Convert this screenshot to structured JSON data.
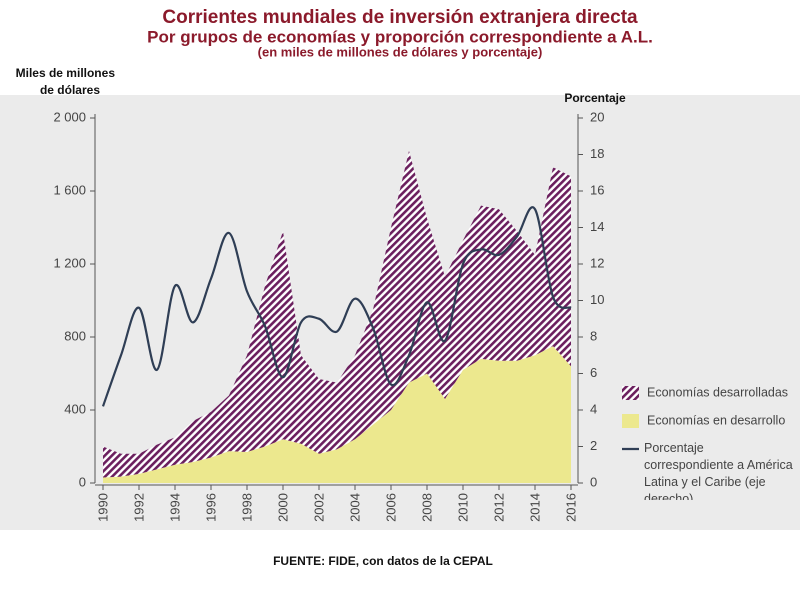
{
  "chart_data": {
    "type": "area",
    "title": "Corrientes mundiales de inversión extranjera directa",
    "subtitle": "Por grupos de economías y proporción correspondiente a A.L.",
    "note": "(en miles de millones de dólares y porcentaje)",
    "ylabel": [
      "Miles de millones",
      "de dólares"
    ],
    "y2label": "Porcentaje",
    "source": "FUENTE: FIDE, con datos de la CEPAL",
    "x": [
      1990,
      1991,
      1992,
      1993,
      1994,
      1995,
      1996,
      1997,
      1998,
      1999,
      2000,
      2001,
      2002,
      2003,
      2004,
      2005,
      2006,
      2007,
      2008,
      2009,
      2010,
      2011,
      2012,
      2013,
      2014,
      2015,
      2016
    ],
    "xlim": [
      1990,
      2016
    ],
    "xticks": [
      1990,
      1992,
      1994,
      1996,
      1998,
      2000,
      2002,
      2004,
      2006,
      2008,
      2010,
      2012,
      2014,
      2016
    ],
    "ylim": [
      0,
      2000
    ],
    "yticks": [
      0,
      400,
      800,
      {
        "value": 1200,
        "label": "1 200"
      },
      {
        "value": 1600,
        "label": "1 600"
      },
      {
        "value": 2000,
        "label": "2 000"
      }
    ],
    "y2lim": [
      0,
      20
    ],
    "y2ticks": [
      0,
      2,
      4,
      6,
      8,
      10,
      12,
      14,
      16,
      18,
      20
    ],
    "stacked": true,
    "series": [
      {
        "name": "Economías en desarrollo",
        "type": "area",
        "color": "#ece88e",
        "values": [
          30,
          35,
          50,
          75,
          100,
          115,
          140,
          175,
          170,
          200,
          240,
          215,
          160,
          185,
          240,
          320,
          400,
          550,
          600,
          460,
          620,
          680,
          670,
          670,
          700,
          750,
          640
        ]
      },
      {
        "name": "Economías desarrolladas",
        "type": "area",
        "color": "#6b1f5e",
        "hatched": true,
        "values": [
          170,
          125,
          110,
          135,
          150,
          225,
          250,
          305,
          530,
          880,
          1140,
          485,
          410,
          365,
          460,
          630,
          1000,
          1270,
          850,
          670,
          710,
          840,
          830,
          710,
          550,
          980,
          1040
        ]
      },
      {
        "name": "Porcentaje correspondiente a América Latina y el Caribe (eje derecho)",
        "type": "line",
        "axis": "y2",
        "color": "#2f3e55",
        "values": [
          4.2,
          7,
          9.6,
          6.2,
          10.8,
          8.8,
          11.2,
          13.7,
          10.5,
          8.6,
          5.8,
          8.8,
          9,
          8.3,
          10.1,
          8.5,
          5.4,
          7,
          9.9,
          7.8,
          12,
          12.8,
          12.5,
          13.5,
          15,
          10.2,
          9.6
        ]
      }
    ],
    "legend_order": [
      1,
      0,
      2
    ]
  }
}
